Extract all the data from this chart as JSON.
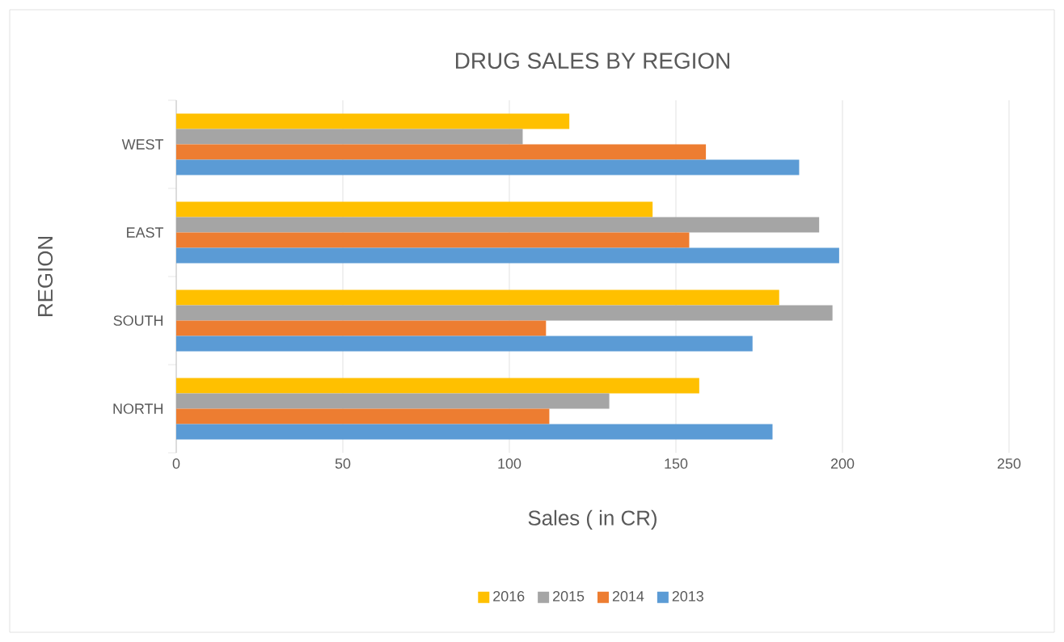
{
  "chart_data": {
    "type": "bar",
    "orientation": "horizontal",
    "title": "DRUG SALES BY REGION",
    "xlabel": "Sales ( in CR)",
    "ylabel": "REGION",
    "categories": [
      "WEST",
      "EAST",
      "SOUTH",
      "NORTH"
    ],
    "series": [
      {
        "name": "2016",
        "color": "#ffc000",
        "values": [
          118,
          143,
          181,
          157
        ]
      },
      {
        "name": "2015",
        "color": "#a5a5a5",
        "values": [
          104,
          193,
          197,
          130
        ]
      },
      {
        "name": "2014",
        "color": "#ed7d31",
        "values": [
          159,
          154,
          111,
          112
        ]
      },
      {
        "name": "2013",
        "color": "#5b9bd5",
        "values": [
          187,
          199,
          173,
          179
        ]
      }
    ],
    "xlim": [
      0,
      250
    ],
    "xticks": [
      0,
      50,
      100,
      150,
      200,
      250
    ],
    "grid": "x",
    "legend": "bottom"
  }
}
